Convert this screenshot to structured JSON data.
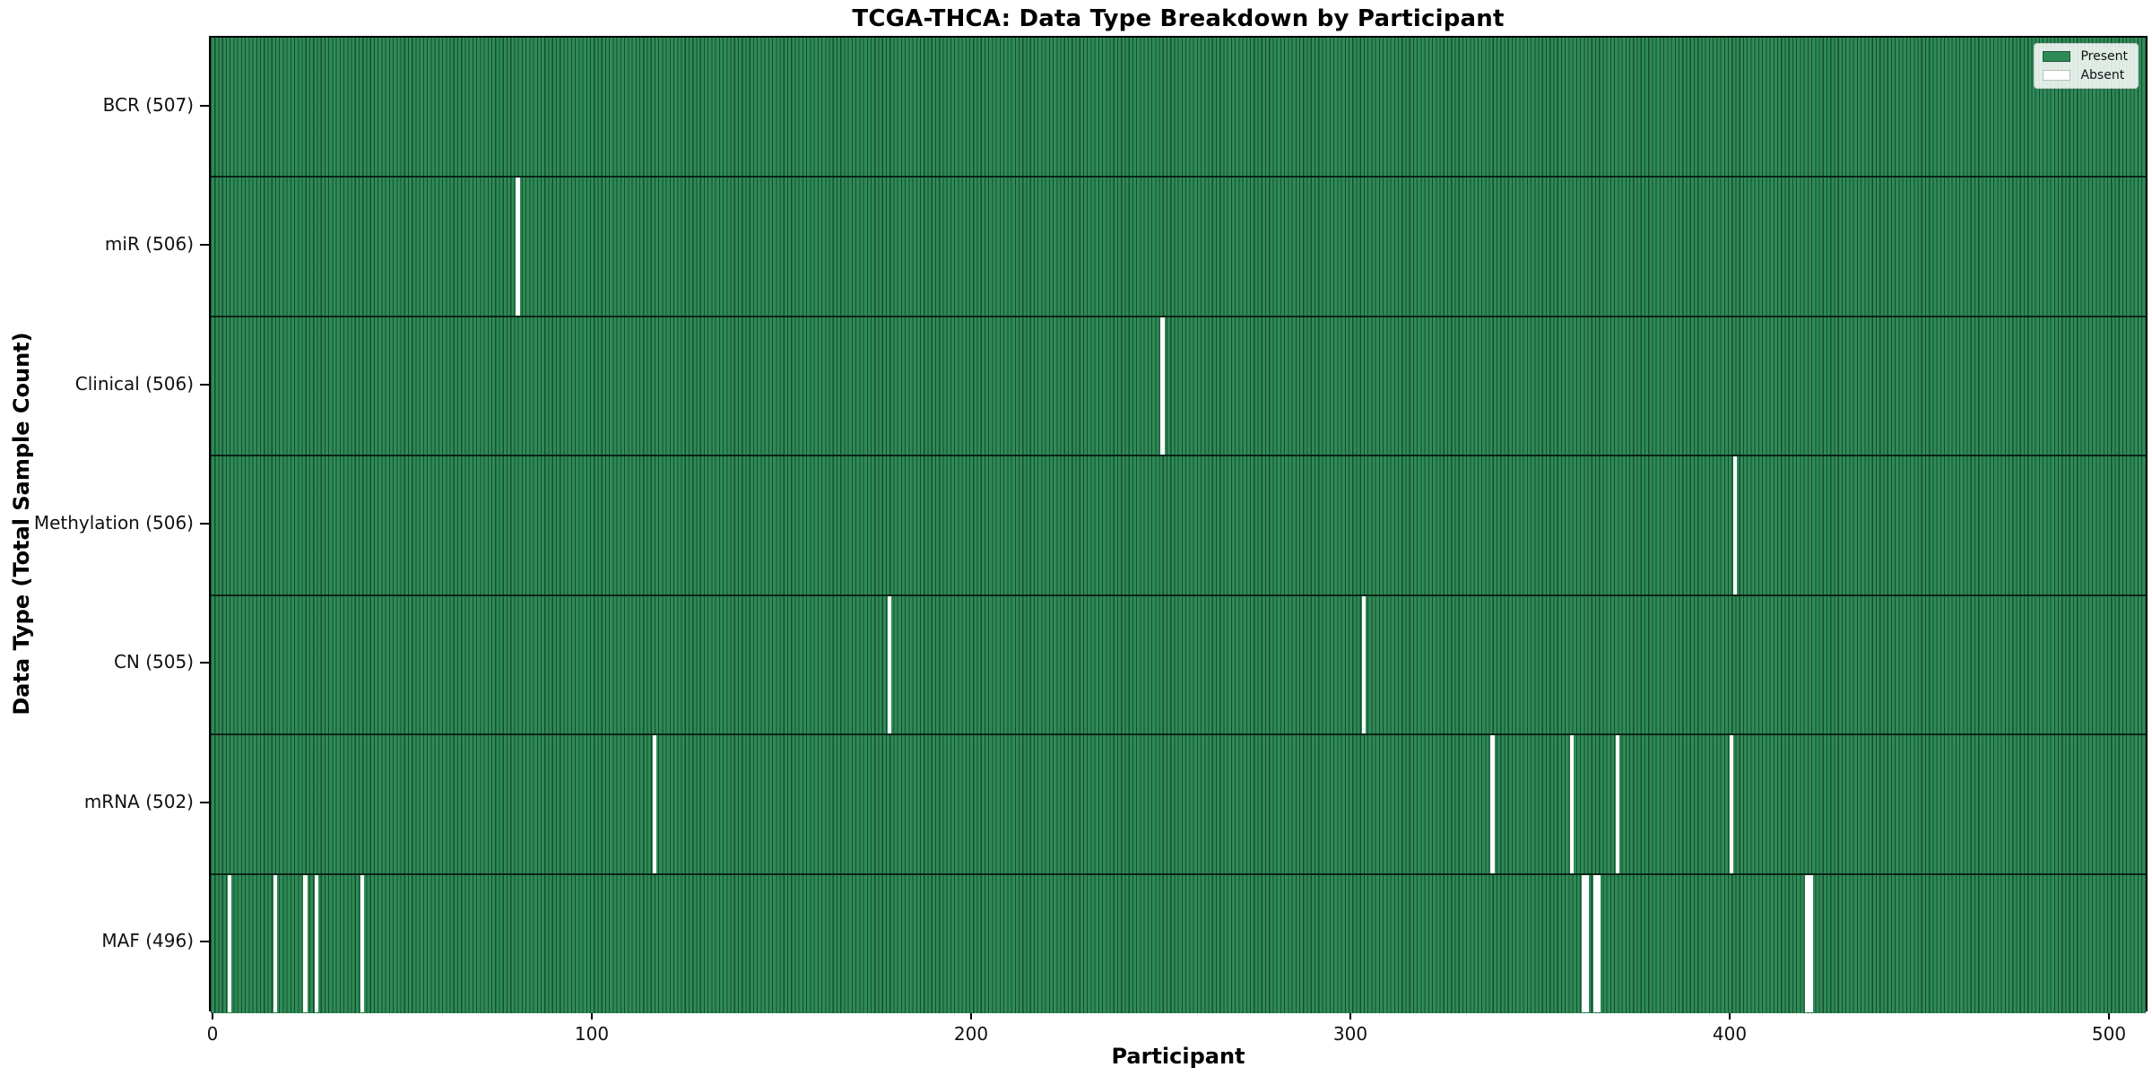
{
  "title": "TCGA-THCA: Data Type Breakdown by Participant",
  "xlabel": "Participant",
  "ylabel": "Data Type (Total Sample Count)",
  "legend": {
    "present_label": "Present",
    "absent_label": "Absent"
  },
  "colors": {
    "present": "#2e8b57",
    "absent": "#ffffff",
    "bar_edge": "rgba(5,25,15,0.55)",
    "row_separator": "rgba(5,20,12,0.85)"
  },
  "chart_data": {
    "type": "heatmap",
    "title": "TCGA-THCA: Data Type Breakdown by Participant",
    "xlabel": "Participant",
    "ylabel": "Data Type (Total Sample Count)",
    "legend": [
      "Present",
      "Absent"
    ],
    "legend_position": "upper right",
    "grid": false,
    "total_participants": 507,
    "x_ticks": [
      0,
      100,
      200,
      300,
      400,
      500
    ],
    "x_range": [
      0,
      507
    ],
    "rows": [
      {
        "label": "BCR (507)",
        "data_type": "BCR",
        "present_count": 507,
        "absent_participants": []
      },
      {
        "label": "miR (506)",
        "data_type": "miR",
        "present_count": 506,
        "absent_participants": [
          80
        ]
      },
      {
        "label": "Clinical (506)",
        "data_type": "Clinical",
        "present_count": 506,
        "absent_participants": [
          250
        ]
      },
      {
        "label": "Methylation (506)",
        "data_type": "Methylation",
        "present_count": 506,
        "absent_participants": [
          401
        ]
      },
      {
        "label": "CN (505)",
        "data_type": "CN",
        "present_count": 505,
        "absent_participants": [
          178,
          303
        ]
      },
      {
        "label": "mRNA (502)",
        "data_type": "mRNA",
        "present_count": 502,
        "absent_participants": [
          116,
          337,
          358,
          370,
          400
        ]
      },
      {
        "label": "MAF (496)",
        "data_type": "MAF",
        "present_count": 496,
        "absent_participants": [
          4,
          16,
          24,
          27,
          39,
          361,
          362,
          364,
          365,
          420,
          421
        ]
      }
    ]
  }
}
